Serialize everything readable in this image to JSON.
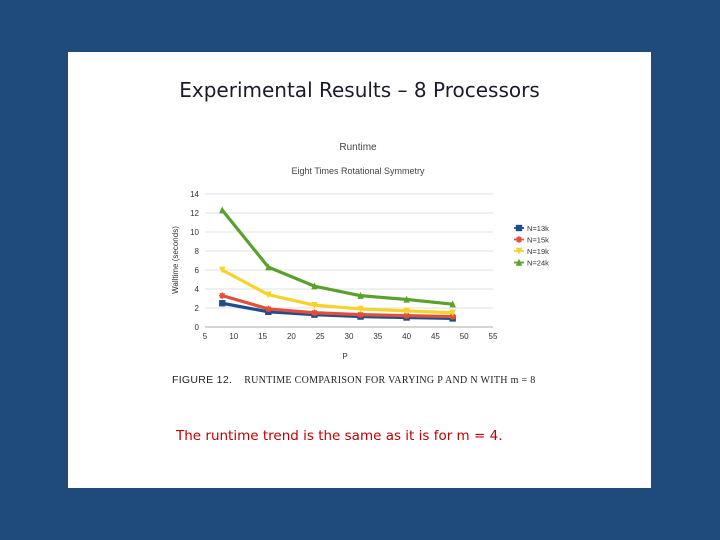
{
  "slide": {
    "title": "Experimental Results – 8 Processors",
    "caption_fig": "FIGURE 12.",
    "caption_text": "RUNTIME COMPARISON FOR VARYING P AND N WITH m = 8",
    "note": "The runtime trend is the same as it is for m = 4."
  },
  "chart_data": {
    "type": "line",
    "title": "Runtime",
    "subtitle": "Eight Times Rotational Symmetry",
    "xlabel": "P",
    "ylabel": "Walltime (seconds)",
    "xlim": [
      5,
      55
    ],
    "ylim": [
      0,
      14
    ],
    "xticks": [
      5,
      10,
      15,
      20,
      25,
      30,
      35,
      40,
      45,
      50,
      55
    ],
    "yticks": [
      0,
      2,
      4,
      6,
      8,
      10,
      12,
      14
    ],
    "grid": true,
    "legend_position": "right",
    "x": [
      8,
      16,
      24,
      32,
      40,
      48
    ],
    "series": [
      {
        "name": "N=13k",
        "color": "#1f4e8c",
        "marker": "square",
        "values": [
          2.5,
          1.6,
          1.3,
          1.1,
          1.0,
          0.9
        ]
      },
      {
        "name": "N=15k",
        "color": "#e0503a",
        "marker": "star",
        "values": [
          3.3,
          1.9,
          1.5,
          1.3,
          1.2,
          1.1
        ]
      },
      {
        "name": "N=19k",
        "color": "#f5d32b",
        "marker": "triangle-down",
        "values": [
          6.0,
          3.4,
          2.3,
          1.9,
          1.7,
          1.5
        ]
      },
      {
        "name": "N=24k",
        "color": "#5aa02c",
        "marker": "triangle-up",
        "values": [
          12.3,
          6.3,
          4.3,
          3.3,
          2.9,
          2.4
        ]
      }
    ]
  }
}
